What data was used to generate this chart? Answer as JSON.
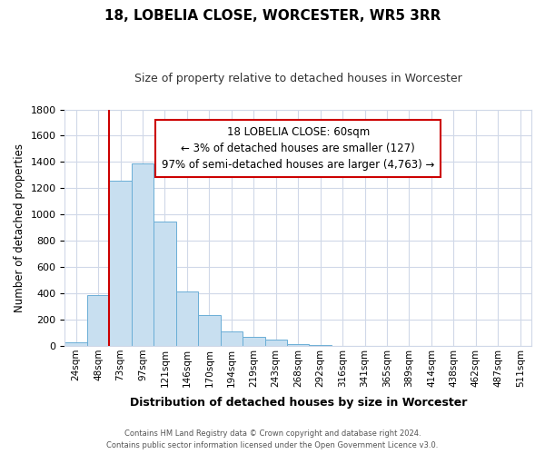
{
  "title": "18, LOBELIA CLOSE, WORCESTER, WR5 3RR",
  "subtitle": "Size of property relative to detached houses in Worcester",
  "xlabel": "Distribution of detached houses by size in Worcester",
  "ylabel": "Number of detached properties",
  "bar_labels": [
    "24sqm",
    "48sqm",
    "73sqm",
    "97sqm",
    "121sqm",
    "146sqm",
    "170sqm",
    "194sqm",
    "219sqm",
    "243sqm",
    "268sqm",
    "292sqm",
    "316sqm",
    "341sqm",
    "365sqm",
    "389sqm",
    "414sqm",
    "438sqm",
    "462sqm",
    "487sqm",
    "511sqm"
  ],
  "bar_values": [
    25,
    390,
    1260,
    1390,
    950,
    415,
    235,
    110,
    68,
    50,
    15,
    5,
    3,
    1,
    0,
    0,
    0,
    0,
    0,
    0,
    0
  ],
  "bar_color": "#c8dff0",
  "bar_edge_color": "#6aaed6",
  "highlight_color": "#cc0000",
  "annotation_text": "18 LOBELIA CLOSE: 60sqm\n← 3% of detached houses are smaller (127)\n97% of semi-detached houses are larger (4,763) →",
  "annotation_box_color": "#ffffff",
  "annotation_box_edge": "#cc0000",
  "ylim": [
    0,
    1800
  ],
  "yticks": [
    0,
    200,
    400,
    600,
    800,
    1000,
    1200,
    1400,
    1600,
    1800
  ],
  "footer_line1": "Contains HM Land Registry data © Crown copyright and database right 2024.",
  "footer_line2": "Contains public sector information licensed under the Open Government Licence v3.0.",
  "bg_color": "#ffffff",
  "grid_color": "#d0d8e8"
}
